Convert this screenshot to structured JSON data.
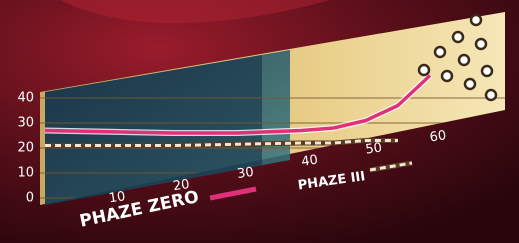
{
  "chart_data": {
    "type": "line",
    "x": [
      0,
      10,
      20,
      30,
      40,
      45,
      50,
      55,
      60
    ],
    "series": [
      {
        "name": "PHAZE ZERO",
        "color": "#e0307a",
        "values": [
          27,
          26.5,
          26,
          26,
          27,
          28,
          31,
          37,
          49
        ]
      },
      {
        "name": "PHAZE III",
        "color": "#f2e6d6",
        "values": [
          21,
          21,
          21,
          21.5,
          22,
          22,
          23,
          23,
          null
        ]
      }
    ],
    "xlim": [
      0,
      60
    ],
    "xticks": [
      10,
      20,
      30,
      40,
      50,
      60
    ],
    "ylim": [
      0,
      40
    ],
    "yticks": [
      0,
      10,
      20,
      30,
      40
    ],
    "grid": true
  }
}
